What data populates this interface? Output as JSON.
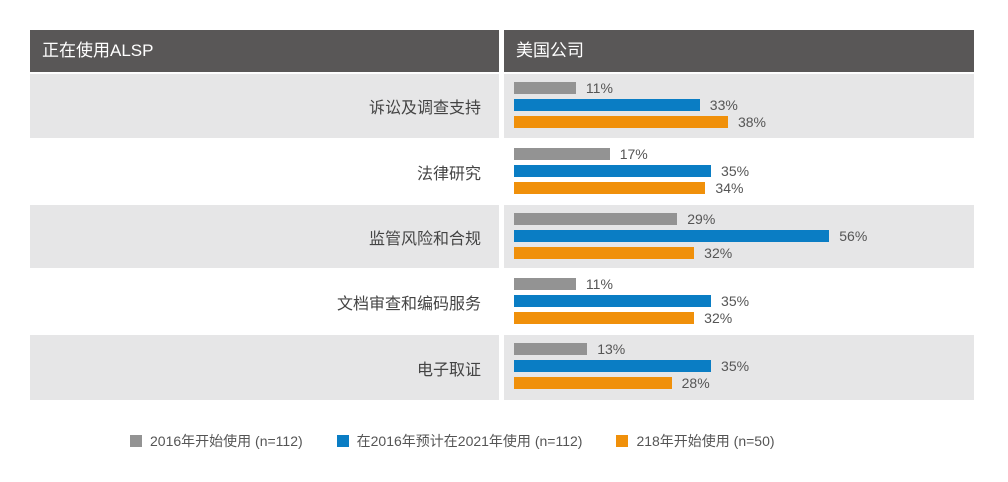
{
  "header": {
    "left_title": "正在使用ALSP",
    "right_title": "美国公司"
  },
  "colors": {
    "s2016": "#939393",
    "s2021": "#0a7dc4",
    "s218": "#f0900a",
    "header_bg": "#595757",
    "row_shade": "#e6e6e7"
  },
  "legend": [
    {
      "label": "2016年开始使用 (n=112)",
      "color": "#939393"
    },
    {
      "label": "在2016年预计在2021年使用 (n=112)",
      "color": "#0a7dc4"
    },
    {
      "label": "218年开始使用 (n=50)",
      "color": "#f0900a"
    }
  ],
  "chart_data": {
    "type": "bar",
    "orientation": "horizontal",
    "title": "正在使用ALSP — 美国公司",
    "categories": [
      "诉讼及调查支持",
      "法律研究",
      "监管风险和合规",
      "文档审查和编码服务",
      "电子取证"
    ],
    "series": [
      {
        "name": "2016年开始使用 (n=112)",
        "values": [
          11,
          17,
          29,
          11,
          13
        ]
      },
      {
        "name": "在2016年预计在2021年使用 (n=112)",
        "values": [
          33,
          35,
          56,
          35,
          35
        ]
      },
      {
        "name": "218年开始使用 (n=50)",
        "values": [
          38,
          34,
          32,
          32,
          28
        ]
      }
    ],
    "labels": [
      [
        "11%",
        "33%",
        "38%"
      ],
      [
        "17%",
        "35%",
        "34%"
      ],
      [
        "29%",
        "56%",
        "32%"
      ],
      [
        "11%",
        "35%",
        "32%"
      ],
      [
        "13%",
        "35%",
        "28%"
      ]
    ],
    "unit": "%",
    "legend_position": "bottom",
    "grid": false
  }
}
